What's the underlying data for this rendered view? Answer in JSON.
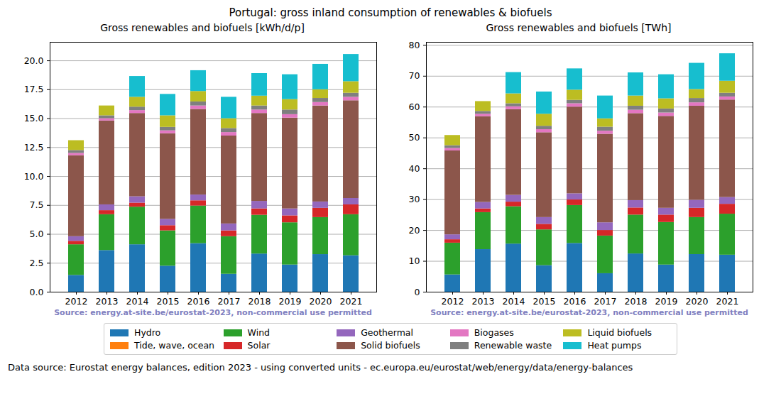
{
  "title": "Portugal: gross inland consumption of renewables & biofuels",
  "footer": "Data source: Eurostat energy balances, edition 2023 - using converted units - ec.europa.eu/eurostat/web/energy/data/energy-balances",
  "chart_data": [
    {
      "type": "bar",
      "title": "Gross renewables and biofuels [kWh/d/p]",
      "source": "Source: energy.at-site.be/eurostat-2023, non-commercial use permitted",
      "stacked": true,
      "grid": true,
      "categories": [
        "2012",
        "2013",
        "2014",
        "2015",
        "2016",
        "2017",
        "2018",
        "2019",
        "2020",
        "2021"
      ],
      "ylim": [
        0,
        21.6
      ],
      "yticks": [
        {
          "value": 0,
          "label": "0.0"
        },
        {
          "value": 2.5,
          "label": "2.5"
        },
        {
          "value": 5,
          "label": "5.0"
        },
        {
          "value": 7.5,
          "label": "7.5"
        },
        {
          "value": 10,
          "label": "10.0"
        },
        {
          "value": 12.5,
          "label": "12.5"
        },
        {
          "value": 15,
          "label": "15.0"
        },
        {
          "value": 17.5,
          "label": "17.5"
        },
        {
          "value": 20,
          "label": "20.0"
        }
      ],
      "series": [
        {
          "name": "Hydro",
          "color": "#1f77b4",
          "values": [
            1.45,
            3.6,
            4.1,
            2.25,
            4.2,
            1.55,
            3.3,
            2.35,
            3.25,
            3.15
          ]
        },
        {
          "name": "Tide, wave, ocean",
          "color": "#ff7f0e",
          "values": [
            0,
            0,
            0,
            0,
            0,
            0,
            0,
            0,
            0,
            0
          ]
        },
        {
          "name": "Wind",
          "color": "#2ca02c",
          "values": [
            2.65,
            3.1,
            3.25,
            3.05,
            3.25,
            3.25,
            3.35,
            3.65,
            3.2,
            3.55
          ]
        },
        {
          "name": "Solar",
          "color": "#d62728",
          "values": [
            0.3,
            0.35,
            0.35,
            0.45,
            0.45,
            0.5,
            0.55,
            0.6,
            0.8,
            0.85
          ]
        },
        {
          "name": "Geothermal",
          "color": "#9467bd",
          "values": [
            0.4,
            0.5,
            0.55,
            0.55,
            0.5,
            0.6,
            0.65,
            0.6,
            0.55,
            0.55
          ]
        },
        {
          "name": "Solid biofuels",
          "color": "#8c564b",
          "values": [
            7.0,
            7.25,
            7.2,
            7.4,
            7.4,
            7.6,
            7.6,
            7.85,
            8.3,
            8.45
          ]
        },
        {
          "name": "Biogases",
          "color": "#e377c2",
          "values": [
            0.2,
            0.2,
            0.25,
            0.25,
            0.3,
            0.3,
            0.3,
            0.3,
            0.3,
            0.3
          ]
        },
        {
          "name": "Renewable waste",
          "color": "#7f7f7f",
          "values": [
            0.25,
            0.25,
            0.3,
            0.3,
            0.35,
            0.35,
            0.35,
            0.4,
            0.35,
            0.35
          ]
        },
        {
          "name": "Liquid biofuels",
          "color": "#bcbd22",
          "values": [
            0.85,
            0.85,
            0.85,
            1.0,
            0.9,
            0.85,
            0.85,
            0.9,
            0.75,
            1.0
          ]
        },
        {
          "name": "Heat pumps",
          "color": "#17becf",
          "values": [
            0,
            0,
            1.8,
            1.85,
            1.8,
            1.85,
            1.95,
            2.15,
            2.2,
            2.35
          ]
        }
      ]
    },
    {
      "type": "bar",
      "title": "Gross renewables and biofuels [TWh]",
      "source": "Source: energy.at-site.be/eurostat-2023, non-commercial use permitted",
      "stacked": true,
      "grid": true,
      "categories": [
        "2012",
        "2013",
        "2014",
        "2015",
        "2016",
        "2017",
        "2018",
        "2019",
        "2020",
        "2021"
      ],
      "ylim": [
        0,
        81
      ],
      "yticks": [
        0,
        10,
        20,
        30,
        40,
        50,
        60,
        70,
        80
      ],
      "series": [
        {
          "name": "Hydro",
          "color": "#1f77b4",
          "values": [
            5.6,
            13.8,
            15.6,
            8.6,
            15.8,
            6.0,
            12.4,
            8.8,
            12.2,
            12.0
          ]
        },
        {
          "name": "Tide, wave, ocean",
          "color": "#ff7f0e",
          "values": [
            0,
            0,
            0,
            0,
            0,
            0,
            0,
            0,
            0,
            0
          ]
        },
        {
          "name": "Wind",
          "color": "#2ca02c",
          "values": [
            10.3,
            12.0,
            12.1,
            11.6,
            12.3,
            12.2,
            12.6,
            13.8,
            12.0,
            13.3
          ]
        },
        {
          "name": "Solar",
          "color": "#d62728",
          "values": [
            1.1,
            1.2,
            1.5,
            1.8,
            1.8,
            1.8,
            2.3,
            2.4,
            3.0,
            3.2
          ]
        },
        {
          "name": "Geothermal",
          "color": "#9467bd",
          "values": [
            1.6,
            2.1,
            2.2,
            2.2,
            2.0,
            2.5,
            2.4,
            2.2,
            2.6,
            2.2
          ]
        },
        {
          "name": "Solid biofuels",
          "color": "#8c564b",
          "values": [
            27.2,
            27.8,
            27.8,
            27.5,
            28.1,
            28.7,
            28.2,
            29.8,
            30.5,
            31.6
          ]
        },
        {
          "name": "Biogases",
          "color": "#e377c2",
          "values": [
            0.8,
            0.8,
            0.9,
            1.0,
            1.1,
            1.0,
            1.1,
            1.1,
            1.1,
            1.0
          ]
        },
        {
          "name": "Renewable waste",
          "color": "#7f7f7f",
          "values": [
            0.9,
            0.9,
            1.0,
            1.1,
            1.1,
            1.3,
            1.3,
            1.3,
            1.4,
            1.2
          ]
        },
        {
          "name": "Liquid biofuels",
          "color": "#bcbd22",
          "values": [
            3.3,
            3.2,
            3.2,
            3.9,
            3.3,
            2.7,
            3.3,
            3.3,
            2.9,
            3.9
          ]
        },
        {
          "name": "Heat pumps",
          "color": "#17becf",
          "values": [
            0,
            0,
            6.9,
            7.2,
            6.9,
            7.4,
            7.5,
            7.8,
            8.5,
            8.9
          ]
        }
      ]
    }
  ]
}
